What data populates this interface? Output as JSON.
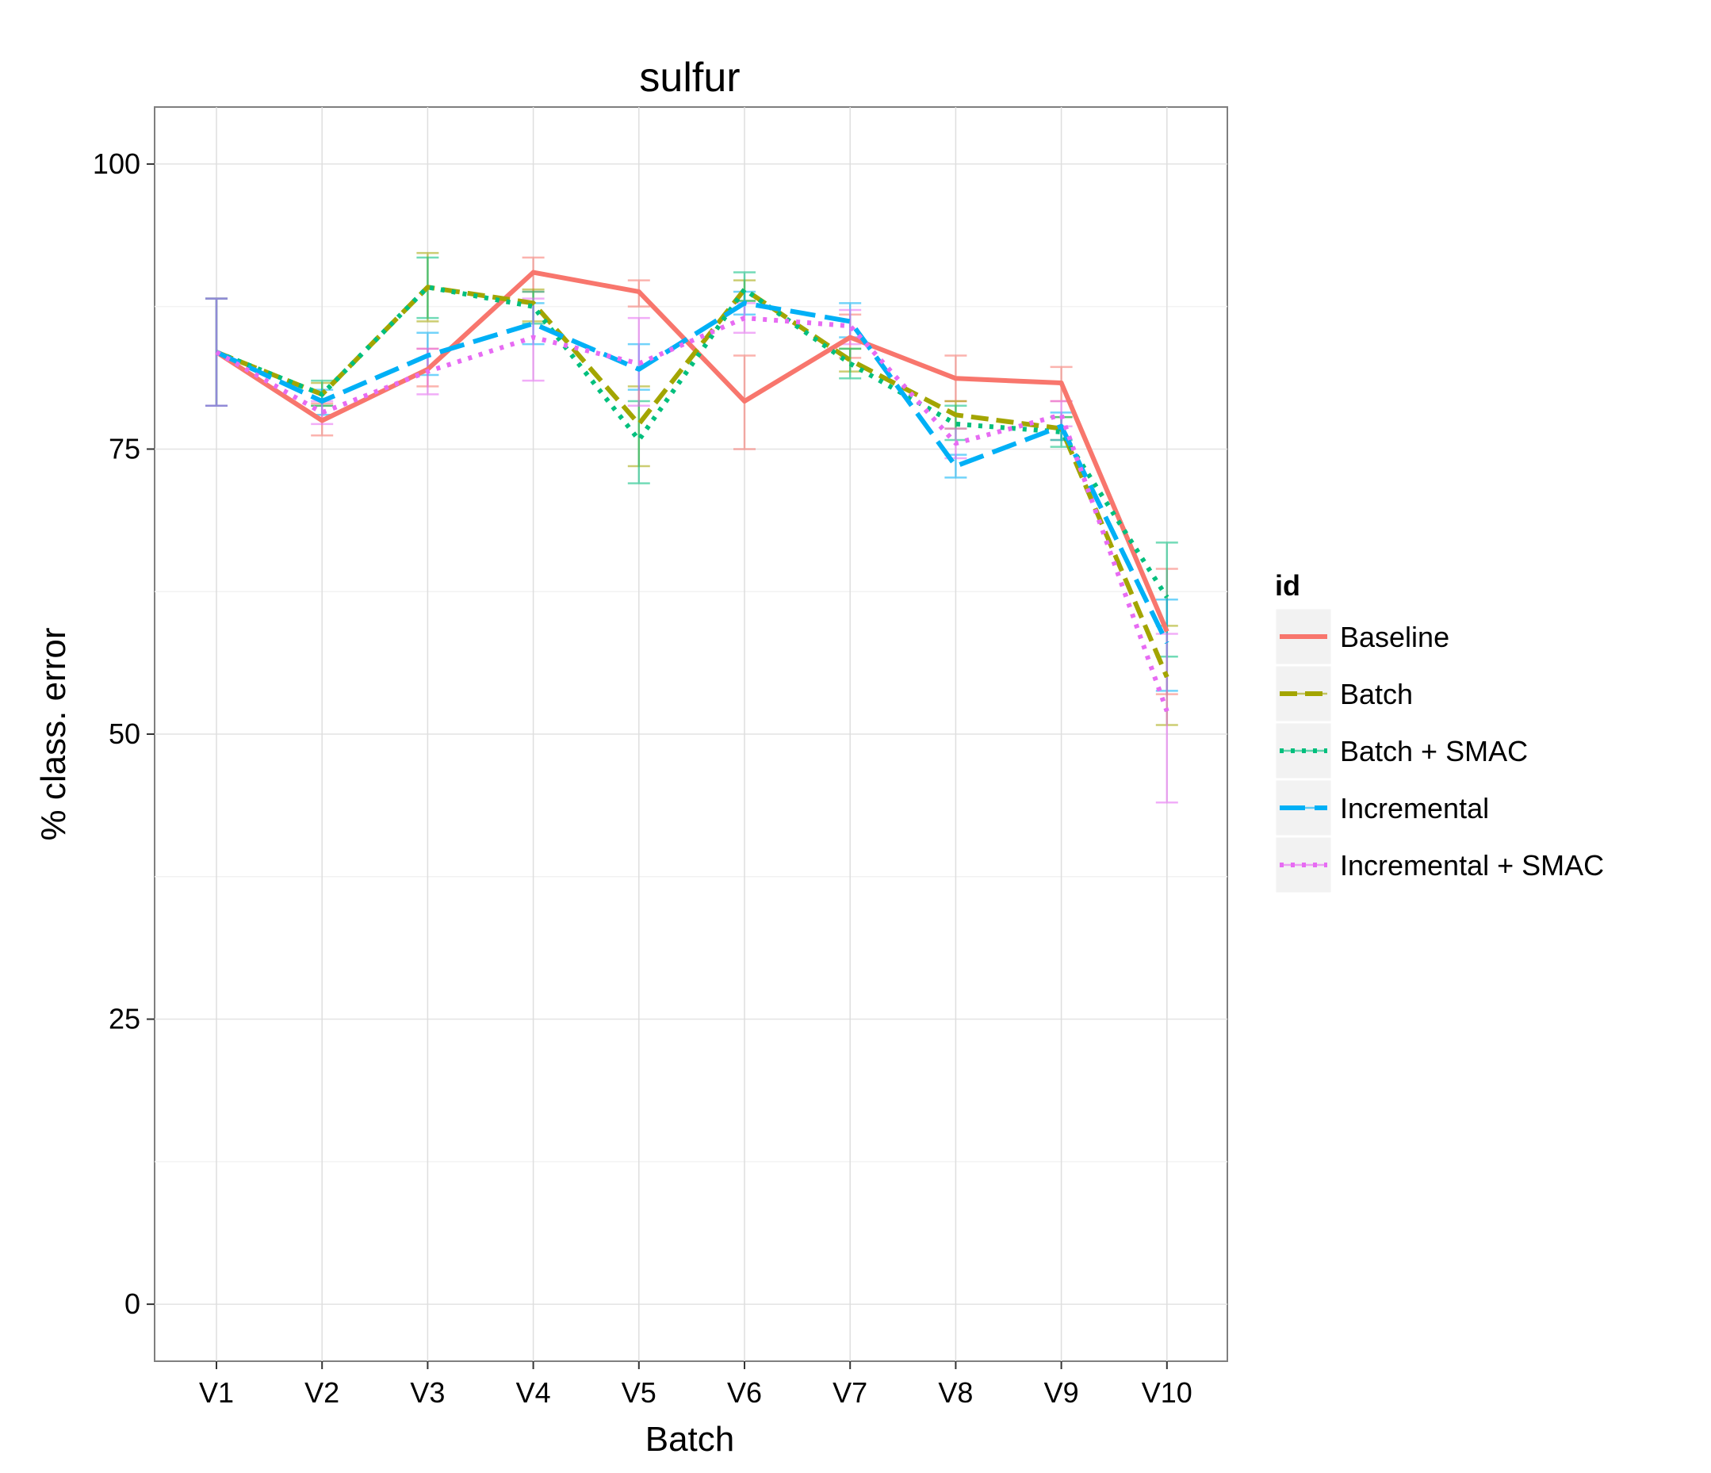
{
  "chart_data": {
    "type": "line",
    "title": "sulfur",
    "xlabel": "Batch",
    "ylabel": "% class. error",
    "categories": [
      "V1",
      "V2",
      "V3",
      "V4",
      "V5",
      "V6",
      "V7",
      "V8",
      "V9",
      "V10"
    ],
    "ylim": [
      -5,
      105
    ],
    "yticks": [
      0,
      25,
      50,
      75,
      100
    ],
    "grid": true,
    "error_bars": true,
    "legend": {
      "title": "id",
      "position": "right"
    },
    "series": [
      {
        "name": "Baseline",
        "color": "#F8766D",
        "dash": "solid",
        "values": [
          83.5,
          77.5,
          82.0,
          90.5,
          88.8,
          79.2,
          84.8,
          81.2,
          80.8,
          59.0
        ],
        "lower": [
          78.8,
          76.2,
          80.5,
          88.8,
          87.5,
          75.0,
          83.0,
          79.2,
          79.2,
          53.5
        ],
        "upper": [
          88.2,
          79.0,
          83.8,
          91.8,
          89.8,
          83.2,
          86.8,
          83.2,
          82.2,
          64.5
        ]
      },
      {
        "name": "Batch",
        "color": "#A3A500",
        "dash": "dashed",
        "values": [
          83.5,
          79.8,
          89.2,
          87.8,
          77.2,
          89.0,
          82.8,
          78.0,
          76.8,
          55.0
        ],
        "lower": [
          78.8,
          78.8,
          86.2,
          86.2,
          73.5,
          88.0,
          81.8,
          76.8,
          75.8,
          50.8
        ],
        "upper": [
          88.2,
          80.8,
          92.2,
          89.0,
          80.5,
          89.8,
          83.8,
          79.2,
          77.8,
          59.5
        ]
      },
      {
        "name": "Batch + SMAC",
        "color": "#00BF7D",
        "dash": "dotted",
        "values": [
          83.5,
          79.8,
          89.2,
          87.5,
          75.8,
          89.0,
          82.5,
          77.2,
          76.5,
          62.0
        ],
        "lower": [
          78.8,
          78.8,
          86.5,
          86.0,
          72.0,
          88.0,
          81.2,
          75.8,
          75.2,
          56.8
        ],
        "upper": [
          88.2,
          81.0,
          91.8,
          88.8,
          79.2,
          90.5,
          83.8,
          78.8,
          77.8,
          66.8
        ]
      },
      {
        "name": "Incremental",
        "color": "#00B0F6",
        "dash": "longdash",
        "values": [
          83.5,
          79.2,
          83.2,
          86.0,
          82.0,
          87.8,
          86.2,
          73.5,
          77.0,
          58.0
        ],
        "lower": [
          78.8,
          78.0,
          81.5,
          84.2,
          80.2,
          86.8,
          84.8,
          72.5,
          75.8,
          53.8
        ],
        "upper": [
          88.2,
          80.2,
          85.2,
          87.8,
          84.2,
          88.8,
          87.8,
          74.5,
          78.2,
          61.8
        ]
      },
      {
        "name": "Incremental + SMAC",
        "color": "#E76BF3",
        "dash": "dotted",
        "values": [
          83.5,
          78.2,
          81.8,
          84.8,
          82.5,
          86.5,
          85.8,
          75.5,
          78.0,
          52.0
        ],
        "lower": [
          78.8,
          77.2,
          79.8,
          81.0,
          78.8,
          85.2,
          84.2,
          74.2,
          77.0,
          44.0
        ],
        "upper": [
          88.2,
          79.2,
          83.8,
          88.2,
          86.5,
          87.8,
          87.2,
          76.8,
          79.2,
          58.8
        ]
      }
    ]
  }
}
